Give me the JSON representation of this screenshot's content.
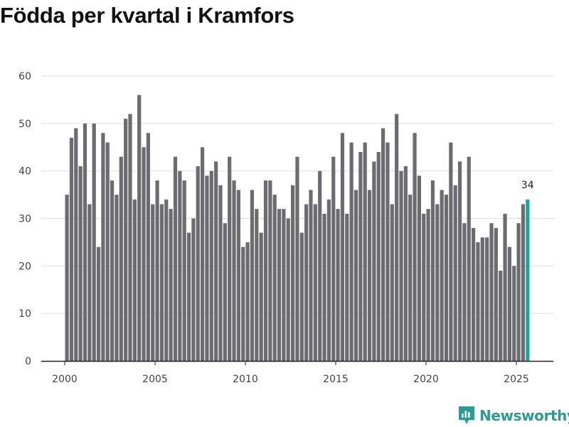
{
  "colors": {
    "bar": "#6b6b70",
    "highlight": "#13a89e",
    "grid": "#dedede",
    "axis": "#222222",
    "brand": "#2a9c93"
  },
  "brand": {
    "name": "Newsworthy",
    "icon": "newsworthy-logo-icon"
  },
  "chart_data": {
    "type": "bar",
    "title": "Födda per kvartal i Kramfors",
    "xlabel": "",
    "ylabel": "",
    "ylim": [
      0,
      60
    ],
    "yticks": [
      0,
      10,
      20,
      30,
      40,
      50,
      60
    ],
    "xticks": [
      2000,
      2005,
      2010,
      2015,
      2020,
      2025
    ],
    "x_start": "2000 Q1",
    "grid": true,
    "highlight_index": 102,
    "highlight_label": "34",
    "values": [
      35,
      47,
      49,
      41,
      50,
      33,
      50,
      24,
      48,
      46,
      38,
      35,
      43,
      51,
      52,
      34,
      56,
      45,
      48,
      33,
      38,
      33,
      34,
      32,
      43,
      40,
      38,
      27,
      30,
      41,
      45,
      39,
      40,
      42,
      37,
      29,
      43,
      38,
      36,
      24,
      25,
      36,
      32,
      27,
      38,
      38,
      35,
      32,
      32,
      30,
      37,
      43,
      27,
      33,
      36,
      33,
      40,
      31,
      34,
      43,
      32,
      48,
      31,
      46,
      36,
      44,
      46,
      36,
      42,
      44,
      49,
      46,
      33,
      52,
      40,
      41,
      35,
      48,
      39,
      31,
      32,
      38,
      33,
      36,
      35,
      46,
      37,
      42,
      29,
      43,
      28,
      25,
      26,
      26,
      29,
      28,
      19,
      31,
      24,
      20,
      29,
      33,
      34
    ]
  }
}
